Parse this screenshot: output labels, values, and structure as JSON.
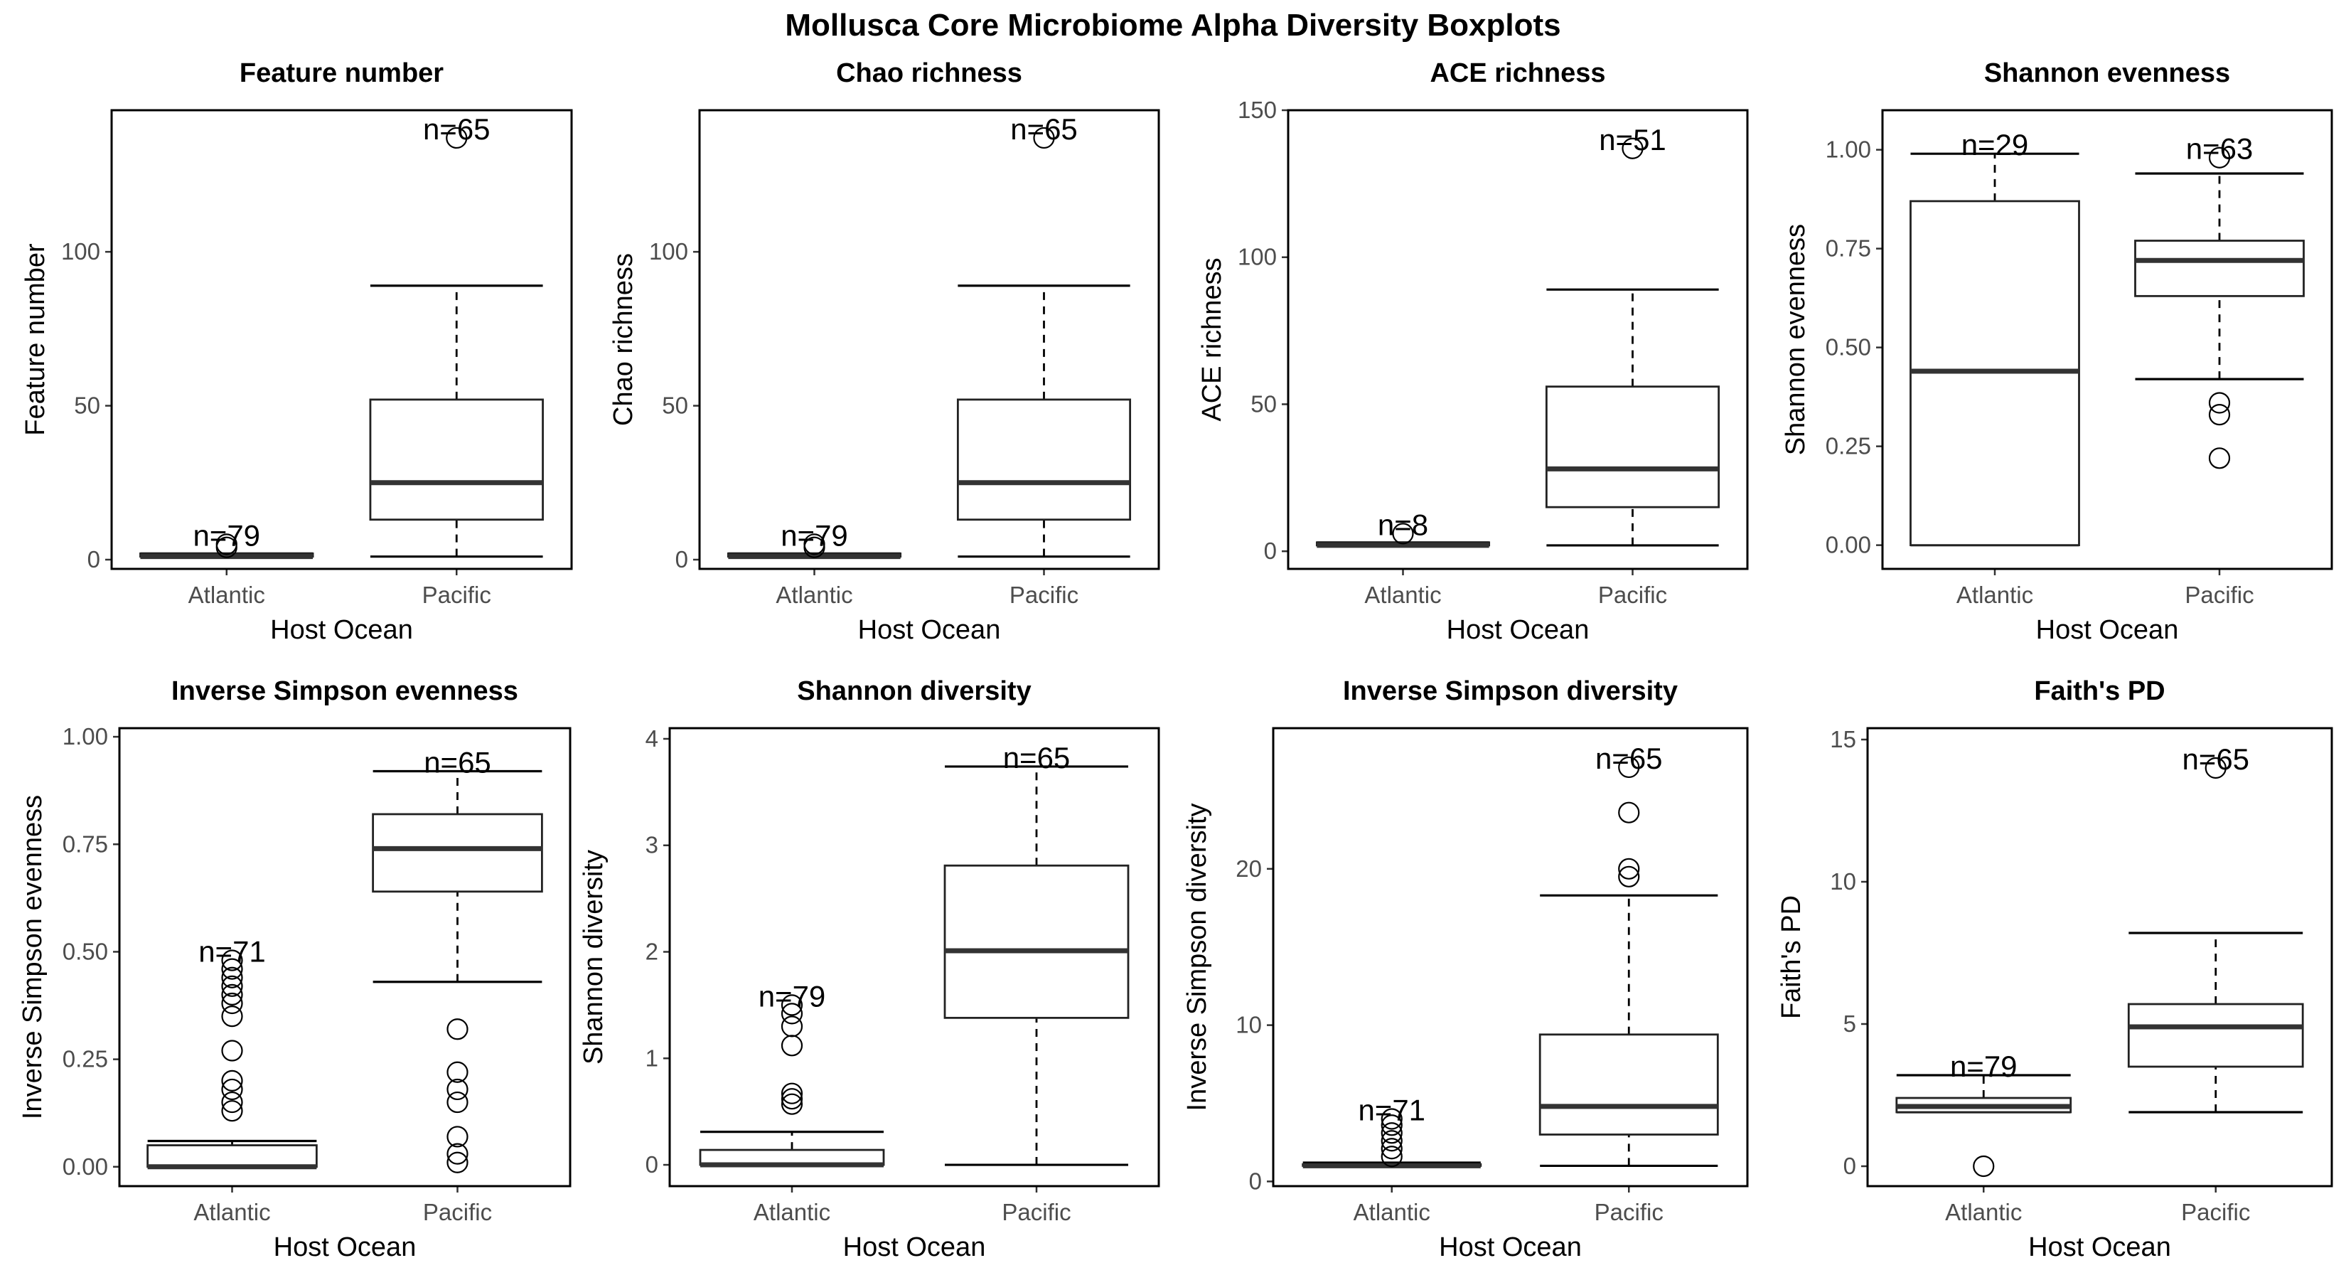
{
  "figure": {
    "title": "Mollusca Core Microbiome Alpha Diversity Boxplots"
  },
  "chart_data": [
    {
      "type": "boxplot",
      "title": "Feature number",
      "xlabel": "Host Ocean",
      "ylabel": "Feature number",
      "ylim": [
        -3,
        146
      ],
      "yticks": [
        0,
        50,
        100
      ],
      "ytick_labels": [
        "0",
        "50",
        "100"
      ],
      "grid": false,
      "categories": [
        "Atlantic",
        "Pacific"
      ],
      "boxes": [
        {
          "category": "Atlantic",
          "lower_whisker": 1,
          "q1": 1,
          "median": 1,
          "q3": 2,
          "upper_whisker": 2,
          "outliers": [
            4,
            5
          ],
          "n_label": "n=79"
        },
        {
          "category": "Pacific",
          "lower_whisker": 1,
          "q1": 13,
          "median": 25,
          "q3": 52,
          "upper_whisker": 89,
          "outliers": [
            137
          ],
          "n_label": "n=65"
        }
      ]
    },
    {
      "type": "boxplot",
      "title": "Chao richness",
      "xlabel": "Host Ocean",
      "ylabel": "Chao richness",
      "ylim": [
        -3,
        146
      ],
      "yticks": [
        0,
        50,
        100
      ],
      "ytick_labels": [
        "0",
        "50",
        "100"
      ],
      "grid": false,
      "categories": [
        "Atlantic",
        "Pacific"
      ],
      "boxes": [
        {
          "category": "Atlantic",
          "lower_whisker": 1,
          "q1": 1,
          "median": 1,
          "q3": 2,
          "upper_whisker": 2,
          "outliers": [
            4,
            5
          ],
          "n_label": "n=79"
        },
        {
          "category": "Pacific",
          "lower_whisker": 1,
          "q1": 13,
          "median": 25,
          "q3": 52,
          "upper_whisker": 89,
          "outliers": [
            137
          ],
          "n_label": "n=65"
        }
      ]
    },
    {
      "type": "boxplot",
      "title": "ACE richness",
      "xlabel": "Host Ocean",
      "ylabel": "ACE richness",
      "ylim": [
        -6,
        150
      ],
      "yticks": [
        0,
        50,
        100,
        150
      ],
      "ytick_labels": [
        "0",
        "50",
        "100",
        "150"
      ],
      "grid": false,
      "categories": [
        "Atlantic",
        "Pacific"
      ],
      "boxes": [
        {
          "category": "Atlantic",
          "lower_whisker": 2,
          "q1": 2,
          "median": 2,
          "q3": 3,
          "upper_whisker": 3,
          "outliers": [
            6
          ],
          "n_label": "n=8"
        },
        {
          "category": "Pacific",
          "lower_whisker": 2,
          "q1": 15,
          "median": 28,
          "q3": 56,
          "upper_whisker": 89,
          "outliers": [
            137
          ],
          "n_label": "n=51"
        }
      ]
    },
    {
      "type": "boxplot",
      "title": "Shannon evenness",
      "xlabel": "Host Ocean",
      "ylabel": "Shannon evenness",
      "ylim": [
        -0.06,
        1.1
      ],
      "yticks": [
        0,
        0.25,
        0.5,
        0.75,
        1
      ],
      "ytick_labels": [
        "0.00",
        "0.25",
        "0.50",
        "0.75",
        "1.00"
      ],
      "grid": false,
      "categories": [
        "Atlantic",
        "Pacific"
      ],
      "boxes": [
        {
          "category": "Atlantic",
          "lower_whisker": 0,
          "q1": 0,
          "median": 0.44,
          "q3": 0.87,
          "upper_whisker": 0.99,
          "outliers": [],
          "n_label": "n=29"
        },
        {
          "category": "Pacific",
          "lower_whisker": 0.42,
          "q1": 0.63,
          "median": 0.72,
          "q3": 0.77,
          "upper_whisker": 0.94,
          "outliers": [
            0.98,
            0.36,
            0.33,
            0.22
          ],
          "n_label": "n=63"
        }
      ]
    },
    {
      "type": "boxplot",
      "title": "Inverse Simpson evenness",
      "xlabel": "Host Ocean",
      "ylabel": "Inverse Simpson evenness",
      "ylim": [
        -0.045,
        1.02
      ],
      "yticks": [
        0,
        0.25,
        0.5,
        0.75,
        1
      ],
      "ytick_labels": [
        "0.00",
        "0.25",
        "0.50",
        "0.75",
        "1.00"
      ],
      "grid": false,
      "categories": [
        "Atlantic",
        "Pacific"
      ],
      "boxes": [
        {
          "category": "Atlantic",
          "lower_whisker": 0,
          "q1": 0,
          "median": 0,
          "q3": 0.05,
          "upper_whisker": 0.06,
          "outliers": [
            0.13,
            0.15,
            0.18,
            0.2,
            0.27,
            0.35,
            0.38,
            0.4,
            0.42,
            0.44,
            0.46,
            0.48
          ],
          "n_label": "n=71"
        },
        {
          "category": "Pacific",
          "lower_whisker": 0.43,
          "q1": 0.64,
          "median": 0.74,
          "q3": 0.82,
          "upper_whisker": 0.92,
          "outliers": [
            0.32,
            0.22,
            0.18,
            0.15,
            0.07,
            0.03,
            0.01
          ],
          "n_label": "n=65"
        }
      ]
    },
    {
      "type": "boxplot",
      "title": "Shannon diversity",
      "xlabel": "Host Ocean",
      "ylabel": "Shannon diversity",
      "ylim": [
        -0.2,
        4.1
      ],
      "yticks": [
        0,
        1,
        2,
        3,
        4
      ],
      "ytick_labels": [
        "0",
        "1",
        "2",
        "3",
        "4"
      ],
      "grid": false,
      "categories": [
        "Atlantic",
        "Pacific"
      ],
      "boxes": [
        {
          "category": "Atlantic",
          "lower_whisker": 0,
          "q1": 0,
          "median": 0,
          "q3": 0.14,
          "upper_whisker": 0.31,
          "outliers": [
            0.57,
            0.62,
            0.67,
            1.12,
            1.3,
            1.42,
            1.5
          ],
          "n_label": "n=79"
        },
        {
          "category": "Pacific",
          "lower_whisker": 0,
          "q1": 1.38,
          "median": 2.01,
          "q3": 2.81,
          "upper_whisker": 3.74,
          "outliers": [],
          "n_label": "n=65"
        }
      ]
    },
    {
      "type": "boxplot",
      "title": "Inverse Simpson diversity",
      "xlabel": "Host Ocean",
      "ylabel": "Inverse Simpson diversity",
      "ylim": [
        -0.3,
        29
      ],
      "yticks": [
        0,
        10,
        20
      ],
      "ytick_labels": [
        "0",
        "10",
        "20"
      ],
      "grid": false,
      "categories": [
        "Atlantic",
        "Pacific"
      ],
      "boxes": [
        {
          "category": "Atlantic",
          "lower_whisker": 1,
          "q1": 1,
          "median": 1,
          "q3": 1.1,
          "upper_whisker": 1.2,
          "outliers": [
            1.6,
            2.1,
            2.6,
            3.1,
            3.6,
            4.0
          ],
          "n_label": "n=71"
        },
        {
          "category": "Pacific",
          "lower_whisker": 1,
          "q1": 3,
          "median": 4.8,
          "q3": 9.4,
          "upper_whisker": 18.3,
          "outliers": [
            19.5,
            20,
            23.6,
            26.5
          ],
          "n_label": "n=65"
        }
      ]
    },
    {
      "type": "boxplot",
      "title": "Faith's PD",
      "xlabel": "Host Ocean",
      "ylabel": "Faith's PD",
      "ylim": [
        -0.7,
        15.4
      ],
      "yticks": [
        0,
        5,
        10,
        15
      ],
      "ytick_labels": [
        "0",
        "5",
        "10",
        "15"
      ],
      "grid": false,
      "categories": [
        "Atlantic",
        "Pacific"
      ],
      "boxes": [
        {
          "category": "Atlantic",
          "lower_whisker": 1.9,
          "q1": 1.9,
          "median": 2.1,
          "q3": 2.4,
          "upper_whisker": 3.2,
          "outliers": [
            0
          ],
          "n_label": "n=79"
        },
        {
          "category": "Pacific",
          "lower_whisker": 1.9,
          "q1": 3.5,
          "median": 4.9,
          "q3": 5.7,
          "upper_whisker": 8.2,
          "outliers": [
            14
          ],
          "n_label": "n=65"
        }
      ]
    }
  ]
}
